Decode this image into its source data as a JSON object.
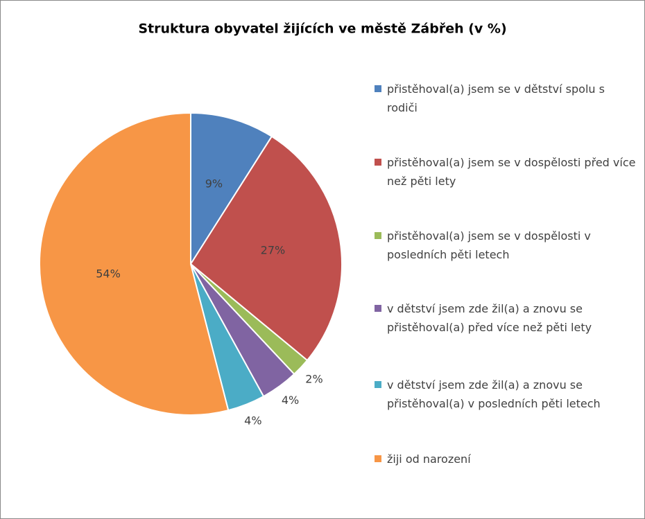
{
  "chart_data": {
    "type": "pie",
    "title": "Struktura obyvatel žijících ve městě Zábřeh (v %)",
    "series": [
      {
        "name": "přistěhoval(a) jsem se v dětství spolu s rodiči",
        "color": "#4f81bd",
        "values": [
          9
        ],
        "value_labels": [
          "9%"
        ]
      },
      {
        "name": "přistěhoval(a) jsem se v dospělosti před více než pěti lety",
        "color": "#c0504d",
        "values": [
          27
        ],
        "value_labels": [
          "27%"
        ]
      },
      {
        "name": "přistěhoval(a) jsem se v dospělosti v posledních pěti letech",
        "color": "#9bbb59",
        "values": [
          2
        ],
        "value_labels": [
          "2%"
        ]
      },
      {
        "name": "v dětství jsem zde žil(a) a znovu se přistěhoval(a) před více než pěti lety",
        "color": "#8064a2",
        "values": [
          4
        ],
        "value_labels": [
          "4%"
        ]
      },
      {
        "name": "v dětství jsem zde žil(a) a znovu se přistěhoval(a) v posledních pěti letech",
        "color": "#4bacc6",
        "values": [
          4
        ],
        "value_labels": [
          "4%"
        ]
      },
      {
        "name": "žiji od narození",
        "color": "#f79646",
        "values": [
          54
        ],
        "value_labels": [
          "54%"
        ]
      }
    ],
    "legend": "right"
  }
}
